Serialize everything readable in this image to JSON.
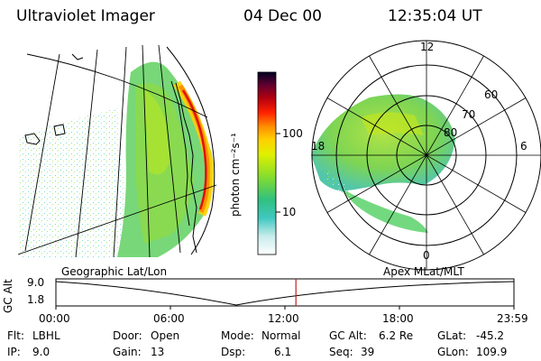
{
  "header": {
    "instrument": "Ultraviolet Imager",
    "date": "04 Dec 00",
    "time": "12:35:04 UT"
  },
  "colorbar": {
    "unit_label": "photon cm⁻²s⁻¹",
    "ticks": [
      "100",
      "10"
    ],
    "colors": [
      "#ffffff",
      "#d8f0f0",
      "#a8e0e0",
      "#40c8c0",
      "#20b0c0",
      "#50d060",
      "#a0e020",
      "#e0f000",
      "#ffd000",
      "#ff9000",
      "#ff3000",
      "#c00000",
      "#800020",
      "#300030",
      "#000020"
    ]
  },
  "polar": {
    "mlt_labels": [
      "12",
      "18",
      "6",
      "0"
    ],
    "lat_labels": [
      "60",
      "70",
      "80"
    ]
  },
  "geo_panel": {
    "label": "Geographic Lat/Lon"
  },
  "apex_panel": {
    "label": "Apex MLat/MLT"
  },
  "timeline": {
    "axis_label": "GC Alt",
    "alt_max": "9.0",
    "alt_min": "1.8",
    "time_ticks": [
      "00:00",
      "06:00",
      "12:00",
      "18:00",
      "23:59"
    ],
    "current_time_fraction": 0.524
  },
  "footer": {
    "filter_label": "Flt:",
    "filter_value": "LBHL",
    "ip_label": "IP:",
    "ip_value": "9.0",
    "door_label": "Door:",
    "door_value": "Open",
    "gain_label": "Gain:",
    "gain_value": "13",
    "mode_label": "Mode:",
    "mode_value": "Normal",
    "dsp_label": "Dsp:",
    "dsp_value": "6.1",
    "gcalt_label": "GC Alt:",
    "gcalt_value": "6.2 Re",
    "seq_label": "Seq:",
    "seq_value": "39",
    "glat_label": "GLat:",
    "glat_value": "-45.2",
    "glon_label": "GLon:",
    "glon_value": "109.9"
  }
}
